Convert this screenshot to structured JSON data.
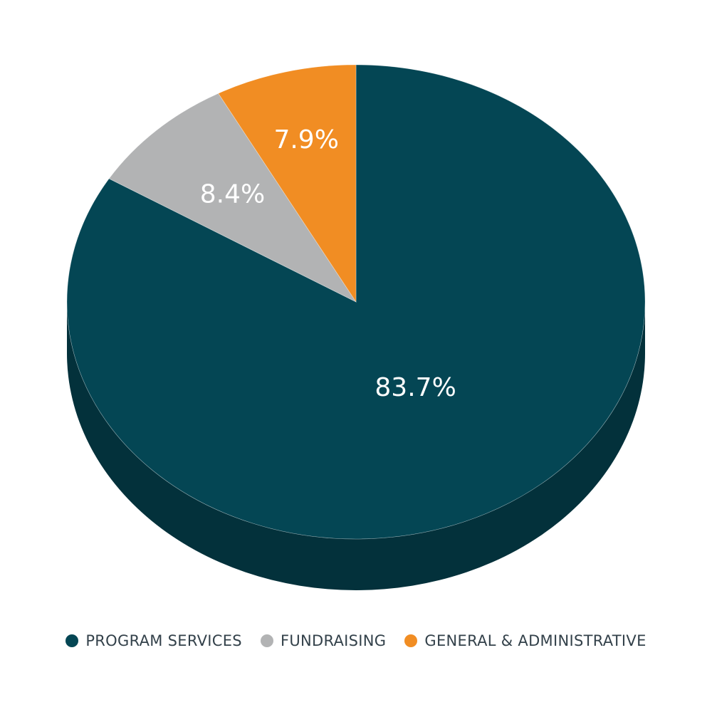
{
  "chart_data": {
    "type": "pie",
    "categories": [
      "PROGRAM SERVICES",
      "FUNDRAISING",
      "GENERAL & ADMINISTRATIVE"
    ],
    "values": [
      83.7,
      8.4,
      7.9
    ],
    "value_labels": [
      "83.7%",
      "8.4%",
      "7.9%"
    ],
    "colors": [
      "#044654",
      "#b2b3b4",
      "#f18d23"
    ],
    "side_colors": [
      "#03313b",
      "#8c8d8e",
      "#c06f18"
    ],
    "style": "3d",
    "legend_position": "bottom",
    "title": ""
  }
}
